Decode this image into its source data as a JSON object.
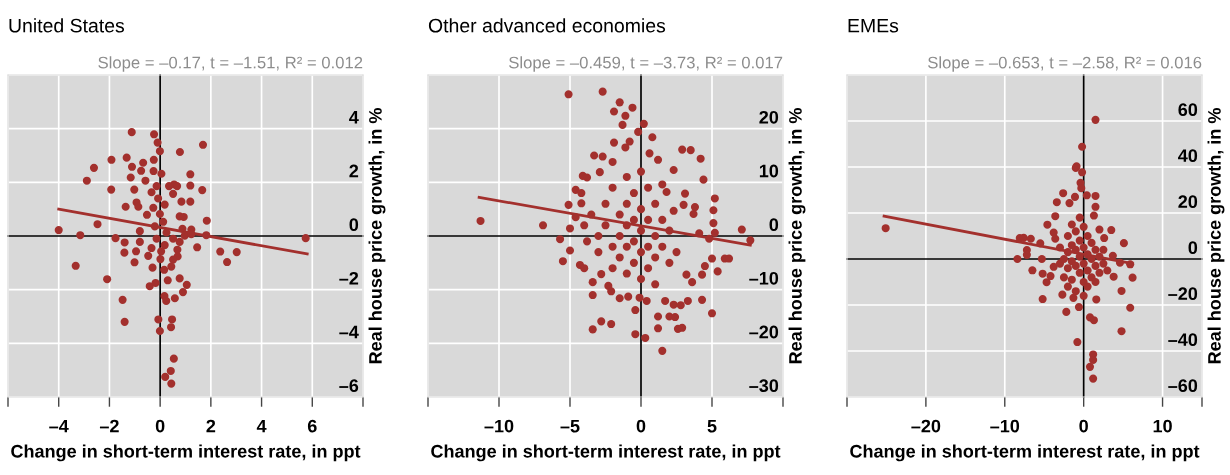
{
  "chart_data": [
    {
      "type": "scatter",
      "title": "United States",
      "subtitle": "Slope = –0.17, t = –1.51, R² = 0.012",
      "xlabel": "Change in short-term interest rate, in ppt",
      "ylabel": "Real house price growth, in %",
      "xlim": [
        -6,
        8
      ],
      "xticks": [
        {
          "value": -6,
          "label": null
        },
        {
          "value": -4,
          "label": "–4"
        },
        {
          "value": -2,
          "label": "–2"
        },
        0,
        2,
        4,
        6,
        {
          "value": 8,
          "label": null
        }
      ],
      "ylim": [
        -6,
        6
      ],
      "yticks": [
        {
          "value": -6,
          "label": "–6"
        },
        {
          "value": -4,
          "label": "–4"
        },
        {
          "value": -2,
          "label": "–2"
        },
        0,
        2,
        4,
        {
          "value": 6,
          "label": null
        }
      ],
      "grid": true,
      "tick_labels": true,
      "series": [
        {
          "type": "scatter",
          "color": "#a3302d",
          "marker": "circle",
          "x": [
            -4.0,
            -3.15,
            -2.47,
            -3.33,
            -2.09,
            -1.76,
            -1.48,
            -1.4,
            -2.89,
            -2.61,
            -1.92,
            -1.93,
            -1.12,
            -1.32,
            -1.11,
            -1.16,
            -1.36,
            -1.02,
            -0.67,
            -0.75,
            -0.58,
            -0.93,
            -0.86,
            -1.4,
            -1.41,
            -1.01,
            -0.95,
            -0.8,
            -0.8,
            -0.52,
            -0.3,
            -0.41,
            -0.18,
            -0.24,
            -0.1,
            -0.01,
            -0.25,
            -0.26,
            0.05,
            -0.34,
            -0.14,
            -0.08,
            -0.27,
            -0.01,
            0.18,
            0.12,
            -0.21,
            -0.14,
            -0.34,
            -0.47,
            0.01,
            0.04,
            0.25,
            0.51,
            0.18,
            0.77,
            0.88,
            0.97,
            0.51,
            0.55,
            0.67,
            0.35,
            0.78,
            0.84,
            0.77,
            0.93,
            1.19,
            1.19,
            1.19,
            1.23,
            1.23,
            1.69,
            1.66,
            1.84,
            1.82,
            1.46,
            2.37,
            2.64,
            3.02,
            5.74,
            0.68,
            0.69,
            0.51,
            0.44,
            0.16,
            0.3,
            0.77,
            1.05,
            0.9,
            0.17,
            0.24,
            0.58,
            -0.07,
            -0.01,
            0.47,
            0.43,
            0.54,
            0.42,
            0.2,
            0.44
          ],
          "values": [
            0.22,
            0.03,
            0.44,
            -1.11,
            -1.61,
            -0.08,
            -2.38,
            -3.2,
            2.06,
            2.54,
            2.84,
            1.73,
            3.87,
            2.92,
            2.58,
            2.18,
            1.09,
            1.73,
            2.73,
            2.43,
            2.06,
            1.25,
            1.09,
            -0.24,
            -0.62,
            -0.98,
            -0.57,
            0.18,
            -0.22,
            0.79,
            -1.18,
            -1.87,
            -1.75,
            3.79,
            3.48,
            3.16,
            2.84,
            2.42,
            2.32,
            1.63,
            1.86,
            1.4,
            1.05,
            0.82,
            1.17,
            0.53,
            0.36,
            -0.1,
            -0.45,
            -0.74,
            -0.86,
            -0.57,
            0.13,
            -0.1,
            -0.34,
            -0.22,
            0.27,
            0.01,
            1.57,
            1.92,
            1.86,
            1.86,
            3.13,
            1.28,
            0.73,
            0.71,
            2.3,
            1.88,
            1.28,
            0.24,
            0.07,
            3.4,
            1.71,
            0.57,
            0.03,
            -0.42,
            -0.58,
            -0.97,
            -0.6,
            -0.08,
            -0.51,
            -0.76,
            -0.88,
            -1.14,
            -1.26,
            -1.65,
            -1.58,
            -1.82,
            -2.09,
            -2.24,
            -2.42,
            -2.32,
            -3.11,
            -3.54,
            -3.11,
            -3.4,
            -4.57,
            -5.03,
            -5.25,
            -5.5
          ]
        },
        {
          "type": "line",
          "color": "#a3302d",
          "line_style": "solid",
          "x": [
            -4.0,
            5.8
          ],
          "values": [
            1.0,
            -0.67
          ]
        }
      ]
    },
    {
      "type": "scatter",
      "title": "Other advanced economies",
      "subtitle": "Slope = –0.459, t = –3.73, R² = 0.017",
      "xlabel": "Change in short-term interest rate, in ppt",
      "ylabel": "Real house price growth, in %",
      "xlim": [
        -15,
        10
      ],
      "xticks": [
        {
          "value": -15,
          "label": null
        },
        {
          "value": -10,
          "label": "–10"
        },
        {
          "value": -5,
          "label": "–5"
        },
        0,
        5,
        {
          "value": 10,
          "label": null
        }
      ],
      "ylim": [
        -30,
        30
      ],
      "yticks": [
        {
          "value": -30,
          "label": "–30"
        },
        {
          "value": -20,
          "label": "–20"
        },
        {
          "value": -10,
          "label": "–10"
        },
        0,
        10,
        20,
        {
          "value": 30,
          "label": null
        }
      ],
      "grid": true,
      "tick_labels": true,
      "series": [
        {
          "type": "scatter",
          "color": "#a3302d",
          "marker": "circle",
          "x": [
            -11.3,
            -6.9,
            -5.7,
            -5.5,
            -5.1,
            -2.7,
            -1.5,
            -1.9,
            -0.6,
            -1.1,
            -1.3,
            0.2,
            -0.2,
            0.8,
            -1.9,
            -0.8,
            -1.1,
            -3.3,
            -2.7,
            2.9,
            3.5,
            4.2,
            4.4,
            2.3,
            1.2,
            0.6,
            -2.0,
            -2.9,
            -4.1,
            -3.8,
            -4.6,
            -4.2,
            -5.1,
            -4.6,
            -5.0,
            -4.2,
            -5.0,
            -4.3,
            -4.0,
            -2.8,
            -3.4,
            -3.4,
            -2.3,
            -2.1,
            -1.5,
            -0.9,
            -2.8,
            -2.1,
            -3.4,
            -0.4,
            -0.4,
            0.3,
            1.5,
            -0.1,
            0.4,
            1.2,
            1.2,
            1.7,
            2.0,
            2.4,
            2.3,
            2.6,
            2.9,
            2.8,
            3.3,
            4.3,
            5.0,
            3.6,
            3.2,
            4.3,
            4.5,
            5.0,
            5.4,
            5.9,
            6.2,
            5.1,
            5.1,
            5.2,
            5.2,
            4.8,
            7.1,
            7.7,
            4.1,
            3.8,
            3.7,
            3.1,
            3.0,
            2.3,
            1.8,
            1.5,
            -3.5,
            -3,
            -3,
            -2.5,
            -2.5,
            -2,
            -2,
            -2,
            -1.5,
            -1.5,
            -1.5,
            -1,
            -1,
            -1,
            -1,
            -1,
            -0.5,
            -0.5,
            -0.5,
            -0.5,
            0,
            0,
            0,
            0,
            0,
            0.5,
            0.5,
            0.5,
            0.5,
            1,
            1,
            1,
            1,
            1.5,
            1.5,
            2,
            2,
            2.5,
            -3.8,
            -4
          ],
          "values": [
            2.8,
            2.0,
            -0.6,
            -4.7,
            26.4,
            26.9,
            24.9,
            23.2,
            23.9,
            22.4,
            20.7,
            20.9,
            19.4,
            18.4,
            17.4,
            17.6,
            16.5,
            15.0,
            14.8,
            16.1,
            16.0,
            14.4,
            10.5,
            12.3,
            14.2,
            15.4,
            13.8,
            11.9,
            11.2,
            10.9,
            8.6,
            8.0,
            5.8,
            3.5,
            1.4,
            6.1,
            -2.7,
            -5.4,
            -6.0,
            -7.1,
            -8.6,
            -11.0,
            -9.3,
            -10.3,
            -11.6,
            -11.3,
            -15.9,
            -16.4,
            -17.4,
            -13.8,
            -18.3,
            -19.0,
            -21.4,
            -11.5,
            -12.1,
            -15.0,
            -17.2,
            -12.1,
            -15.0,
            -15.1,
            -12.8,
            -17.3,
            -17.1,
            -12.9,
            -12.1,
            -11.9,
            -14.4,
            -8.6,
            -7.2,
            -7.2,
            -5.6,
            -4.2,
            -6.6,
            -4.2,
            -4.2,
            2.4,
            4.8,
            7.0,
            0.6,
            -0.5,
            1.2,
            -0.8,
            0.5,
            5.4,
            4.1,
            7.9,
            5.8,
            4.7,
            8.2,
            9.6,
            4,
            0,
            -3,
            6,
            2,
            -2,
            -6,
            9,
            4,
            0,
            -4,
            11,
            6,
            2,
            -2,
            -7,
            8,
            3,
            -1,
            -5,
            12,
            5,
            1,
            -3,
            -8,
            9,
            3,
            -2,
            -6,
            6,
            0,
            -4,
            -9,
            3,
            -2,
            1,
            -5,
            -3,
            -1,
            2
          ]
        },
        {
          "type": "line",
          "color": "#a3302d",
          "line_style": "solid",
          "x": [
            -11.4,
            7.7
          ],
          "values": [
            7.2,
            -1.7
          ]
        }
      ]
    },
    {
      "type": "scatter",
      "title": "EMEs",
      "subtitle": "Slope = –0.653, t = –2.58, R² = 0.016",
      "xlabel": "Change in short-term interest rate, in ppt",
      "ylabel": "Real house price growth, in %",
      "xlim": [
        -30,
        15
      ],
      "xticks": [
        {
          "value": -30,
          "label": null
        },
        {
          "value": -20,
          "label": "–20"
        },
        {
          "value": -10,
          "label": "–10"
        },
        0,
        10,
        {
          "value": 15,
          "label": null
        }
      ],
      "ylim": [
        -60,
        80
      ],
      "yticks": [
        {
          "value": -60,
          "label": "–60"
        },
        {
          "value": -40,
          "label": "–40"
        },
        {
          "value": -20,
          "label": "–20"
        },
        0,
        20,
        40,
        60,
        {
          "value": 80,
          "label": null
        }
      ],
      "grid": true,
      "tick_labels": true,
      "series": [
        {
          "type": "scatter",
          "color": "#a3302d",
          "marker": "circle",
          "x": [
            -25.1,
            -8.4,
            -8.1,
            -7.6,
            -6.7,
            -7.2,
            -7.2,
            -6.5,
            -5.3,
            -5.5,
            -5.2,
            -4.6,
            -4.7,
            -5.2,
            -3.4,
            -2.6,
            -3.6,
            -2.2,
            -0.6,
            -0.8,
            -1.0,
            -0.9,
            -0.2,
            -0.2,
            -0.4,
            -0.3,
            -1.8,
            -1.1,
            0.4,
            1.5,
            1.5,
            1.5,
            1.3,
            2.0,
            2.6,
            3.5,
            5.1,
            3.7,
            4.6,
            5.9,
            6.2,
            3.8,
            4.8,
            5.9,
            4.8,
            1.6,
            0.8,
            1.3,
            1.2,
            1.2,
            0.8,
            1.2,
            -1.3,
            -2.7,
            -4.2,
            -3.8,
            -3.6,
            -3.8,
            -3,
            -3,
            -2.5,
            -2.5,
            -2,
            -2,
            -2,
            -2,
            -1.5,
            -1.5,
            -1.5,
            -1.5,
            -1,
            -1,
            -1,
            -1,
            -0.5,
            -0.5,
            -0.5,
            -0.5,
            0,
            0,
            0,
            0,
            0,
            0.5,
            0.5,
            0.5,
            0.5,
            1,
            1,
            1,
            1.5,
            1.5,
            1.5,
            2,
            2,
            2.5,
            3,
            2.5
          ],
          "values": [
            13.4,
            0.0,
            9.1,
            9.2,
            8.8,
            3.9,
            1.8,
            -4.9,
            0.0,
            6.8,
            -6.4,
            14.9,
            -10.1,
            -17.4,
            24.7,
            28.6,
            18.6,
            -23.0,
            -20.9,
            -36.1,
            39.6,
            40.3,
            48.8,
            37.7,
            33.1,
            30.8,
            24.3,
            27.0,
            27.7,
            60.5,
            27.4,
            22.7,
            18.9,
            12.8,
            9.1,
            12.6,
            6.9,
            1.4,
            -1.6,
            -2.3,
            -8.1,
            -7.7,
            -13.9,
            -21.2,
            -31.4,
            -17.6,
            -25.4,
            -26.6,
            -41.5,
            -43.9,
            -46.9,
            -52.0,
            -16.9,
            -15.5,
            -7.4,
            -3.4,
            8.8,
            11.5,
            5,
            -2,
            0,
            -8,
            10,
            3,
            -4,
            -12,
            15,
            6,
            -1,
            -9,
            12,
            4,
            -3,
            -14,
            18,
            8,
            1,
            -6,
            14,
            5,
            -2,
            -10,
            -16,
            10,
            2,
            -5,
            -12,
            7,
            0,
            -8,
            4,
            -3,
            -10,
            1,
            -6,
            -2,
            -5,
            4
          ]
        },
        {
          "type": "line",
          "color": "#a3302d",
          "line_style": "solid",
          "x": [
            -25.3,
            6.2
          ],
          "values": [
            18.6,
            -2.0
          ]
        }
      ]
    }
  ]
}
